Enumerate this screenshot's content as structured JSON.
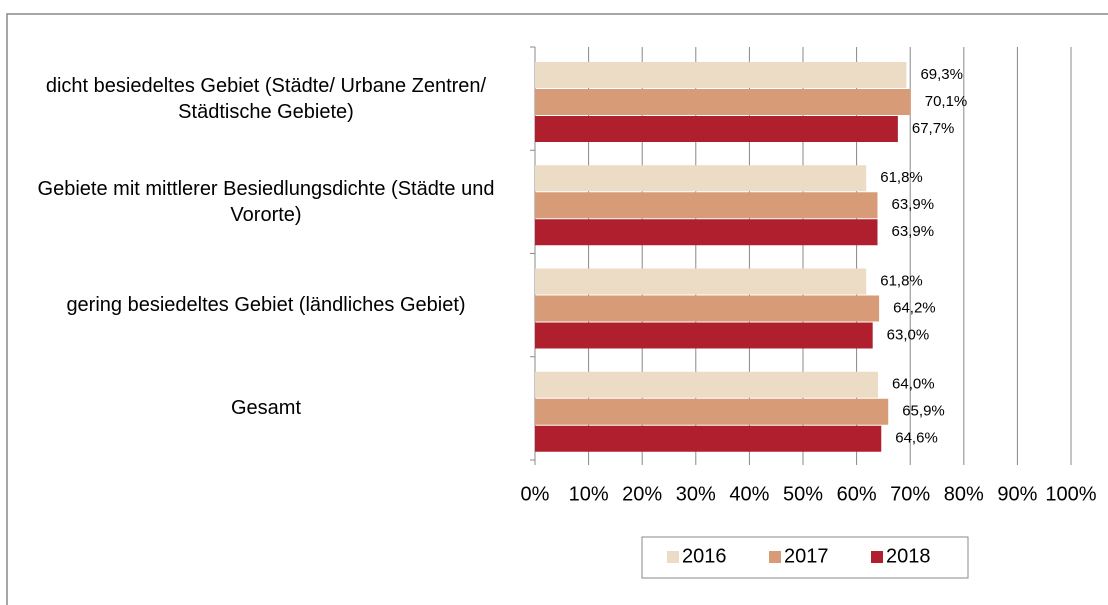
{
  "chart_data": {
    "type": "bar",
    "orientation": "horizontal",
    "categories": [
      "dicht besiedeltes Gebiet (Städte/ Urbane Zentren/ Städtische Gebiete)",
      "Gebiete mit mittlerer Besiedlungsdichte (Städte und Vororte)",
      "gering besiedeltes Gebiet (ländliches Gebiet)",
      "Gesamt"
    ],
    "series": [
      {
        "name": "2016",
        "color": "#ecdcc6",
        "values": [
          69.3,
          61.8,
          61.8,
          64.0
        ],
        "value_labels": [
          "69,3%",
          "61,8%",
          "61,8%",
          "64,0%"
        ]
      },
      {
        "name": "2017",
        "color": "#d89b77",
        "values": [
          70.1,
          63.9,
          64.2,
          65.9
        ],
        "value_labels": [
          "70,1%",
          "63,9%",
          "64,2%",
          "65,9%"
        ]
      },
      {
        "name": "2018",
        "color": "#b01f2e",
        "values": [
          67.7,
          63.9,
          63.0,
          64.6
        ],
        "value_labels": [
          "67,7%",
          "63,9%",
          "63,0%",
          "64,6%"
        ]
      }
    ],
    "xlim": [
      0,
      100
    ],
    "xticks": [
      {
        "value": 0,
        "label": "0%"
      },
      {
        "value": 10,
        "label": "10%"
      },
      {
        "value": 20,
        "label": "20%"
      },
      {
        "value": 30,
        "label": "30%"
      },
      {
        "value": 40,
        "label": "40%"
      },
      {
        "value": 50,
        "label": "50%"
      },
      {
        "value": 60,
        "label": "60%"
      },
      {
        "value": 70,
        "label": "70%"
      },
      {
        "value": 80,
        "label": "80%"
      },
      {
        "value": 90,
        "label": "90%"
      },
      {
        "value": 100,
        "label": "100%"
      }
    ],
    "grid": true,
    "legend": "bottom"
  }
}
